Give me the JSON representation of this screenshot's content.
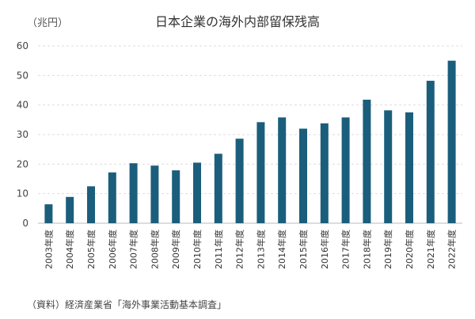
{
  "chart_data": {
    "type": "bar",
    "title": "日本企業の海外内部留保残高",
    "unit": "（兆円）",
    "source": "（資料）経済産業省「海外事業活動基本調査」",
    "categories": [
      "2003年度",
      "2004年度",
      "2005年度",
      "2006年度",
      "2007年度",
      "2008年度",
      "2009年度",
      "2010年度",
      "2011年度",
      "2012年度",
      "2013年度",
      "2014年度",
      "2015年度",
      "2016年度",
      "2017年度",
      "2018年度",
      "2019年度",
      "2020年度",
      "2021年度",
      "2022年度"
    ],
    "values": [
      6.4,
      8.9,
      12.5,
      17.2,
      20.3,
      19.5,
      17.9,
      20.5,
      23.5,
      28.6,
      34.2,
      35.8,
      32.0,
      33.8,
      35.8,
      41.8,
      38.2,
      37.5,
      48.2,
      55.0
    ],
    "yticks": [
      "0",
      "10",
      "20",
      "30",
      "40",
      "50",
      "60"
    ],
    "ylim": [
      0,
      60
    ],
    "grid": true,
    "bar_color": "#1b5e7c",
    "xlabel": "",
    "ylabel": ""
  }
}
